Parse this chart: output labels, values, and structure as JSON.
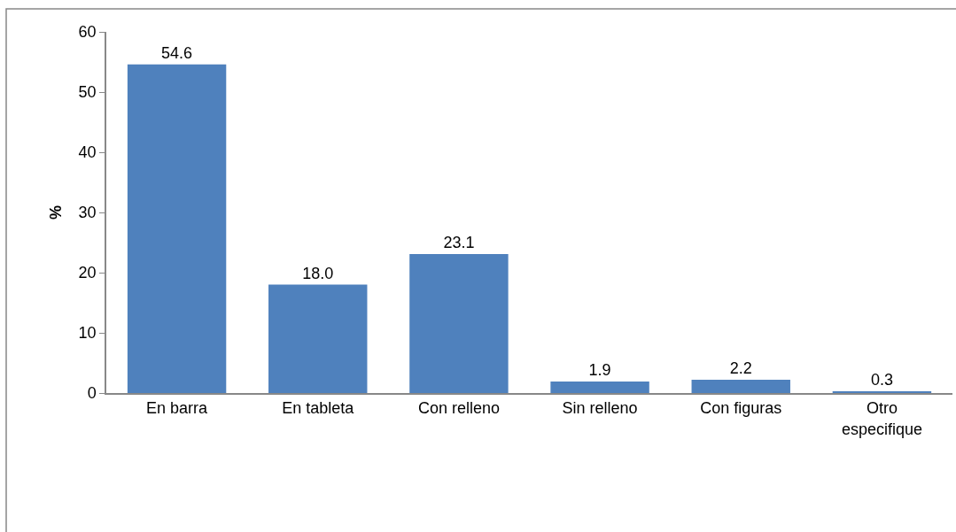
{
  "chart_data": {
    "type": "bar",
    "categories": [
      "En barra",
      "En tableta",
      "Con relleno",
      "Sin relleno",
      "Con figuras",
      "Otro especifique"
    ],
    "values": [
      54.6,
      18.0,
      23.1,
      1.9,
      2.2,
      0.3
    ],
    "value_labels": [
      "54.6",
      "18.0",
      "23.1",
      "1.9",
      "2.2",
      "0.3"
    ],
    "color": "#4f81bd",
    "ylabel": "%",
    "ylim": [
      0,
      60
    ],
    "yticks": [
      0,
      10,
      20,
      30,
      40,
      50,
      60
    ]
  }
}
